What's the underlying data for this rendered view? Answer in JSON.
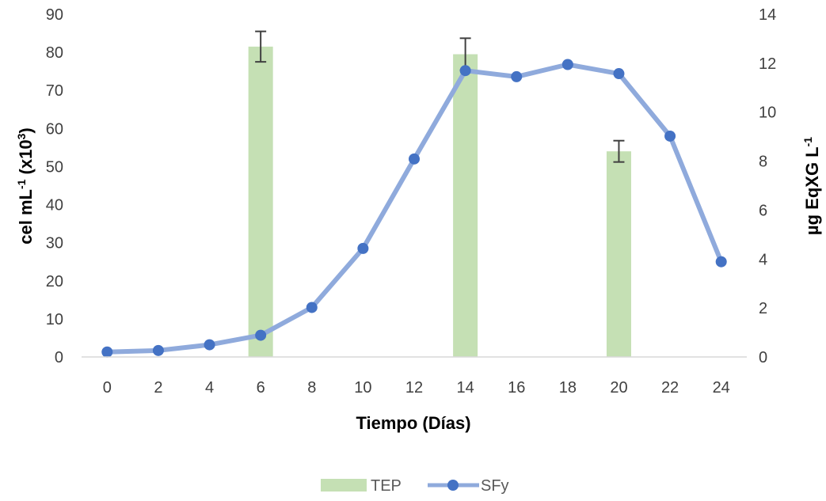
{
  "chart_data": {
    "type": "bar+line",
    "title": "",
    "xlabel": "Tiempo (Días)",
    "ylabel_left": {
      "base": "cel mL",
      "sup1": "-1",
      "mid": " (x10",
      "sup2": "3",
      "end": ")"
    },
    "ylabel_right": {
      "base": "µg EqXG L",
      "sup": "-1"
    },
    "x_ticks": [
      "0",
      "2",
      "4",
      "6",
      "8",
      "10",
      "12",
      "14",
      "16",
      "18",
      "20",
      "22",
      "24"
    ],
    "x_values": [
      0,
      2,
      4,
      6,
      8,
      10,
      12,
      14,
      16,
      18,
      20,
      22,
      24
    ],
    "y_left": {
      "min": 0,
      "max": 90,
      "step": 10,
      "ticks": [
        "0",
        "10",
        "20",
        "30",
        "40",
        "50",
        "60",
        "70",
        "80",
        "90"
      ]
    },
    "y_right": {
      "min": 0,
      "max": 14,
      "step": 2,
      "ticks": [
        "0",
        "2",
        "4",
        "6",
        "8",
        "10",
        "12",
        "14"
      ]
    },
    "grid": false,
    "legend_position": "bottom",
    "series": [
      {
        "name": "TEP",
        "kind": "bar",
        "axis": "left",
        "color": "#c5e0b4",
        "x": [
          6,
          14,
          20
        ],
        "values": [
          81.5,
          79.5,
          54.0
        ],
        "error": [
          4.0,
          4.2,
          2.8
        ]
      },
      {
        "name": "SFy",
        "kind": "line",
        "axis": "left",
        "color": "#8faadc",
        "marker_color": "#4472c4",
        "x": [
          0,
          2,
          4,
          6,
          8,
          10,
          12,
          14,
          16,
          18,
          20,
          22,
          24
        ],
        "values": [
          1.3,
          1.7,
          3.2,
          5.7,
          13.0,
          28.5,
          52.0,
          75.2,
          73.6,
          76.8,
          74.4,
          58.0,
          25.0
        ]
      }
    ]
  }
}
